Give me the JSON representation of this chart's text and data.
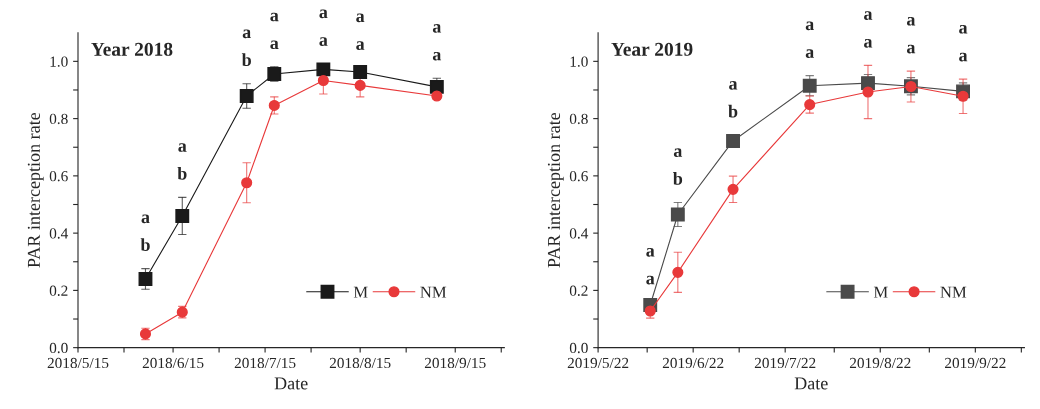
{
  "chart_data": [
    {
      "type": "line",
      "title": "Year 2018",
      "xlabel": "Date",
      "ylabel": "PAR interception rate",
      "x": [
        "2018-06-06",
        "2018-06-18",
        "2018-07-09",
        "2018-07-18",
        "2018-08-03",
        "2018-08-15",
        "2018-09-09"
      ],
      "series": [
        {
          "name": "M",
          "color": "#1a1a1a",
          "marker": "square",
          "values": [
            0.24,
            0.46,
            0.879,
            0.956,
            0.972,
            0.963,
            0.911
          ],
          "errors": [
            0.036,
            0.065,
            0.043,
            0.025,
            0.02,
            0.015,
            0.03
          ]
        },
        {
          "name": "NM",
          "color": "#e8393a",
          "marker": "circle",
          "values": [
            0.048,
            0.124,
            0.576,
            0.846,
            0.933,
            0.916,
            0.879
          ],
          "errors": [
            0.02,
            0.02,
            0.07,
            0.03,
            0.047,
            0.04,
            0.012
          ]
        }
      ],
      "xlim": [
        "2018-05-15",
        "2018-10-01"
      ],
      "xticks": [
        {
          "value": "2018-05-15",
          "label": "2018/5/15"
        },
        {
          "value": "2018-05-30",
          "label": null
        },
        {
          "value": "2018-06-15",
          "label": "2018/6/15"
        },
        {
          "value": "2018-06-30",
          "label": null
        },
        {
          "value": "2018-07-15",
          "label": "2018/7/15"
        },
        {
          "value": "2018-07-30",
          "label": null
        },
        {
          "value": "2018-08-15",
          "label": "2018/8/15"
        },
        {
          "value": "2018-08-30",
          "label": null
        },
        {
          "value": "2018-09-15",
          "label": "2018/9/15"
        },
        {
          "value": "2018-09-30",
          "label": null
        }
      ],
      "ylim": [
        0,
        1.1
      ],
      "yticks": [
        {
          "value": 0,
          "label": "0.0"
        },
        {
          "value": 0.1,
          "label": null
        },
        {
          "value": 0.2,
          "label": "0.2"
        },
        {
          "value": 0.3,
          "label": null
        },
        {
          "value": 0.4,
          "label": "0.4"
        },
        {
          "value": 0.5,
          "label": null
        },
        {
          "value": 0.6,
          "label": "0.6"
        },
        {
          "value": 0.7,
          "label": null
        },
        {
          "value": 0.8,
          "label": "0.8"
        },
        {
          "value": 0.9,
          "label": null
        },
        {
          "value": 1.0,
          "label": "1.0"
        }
      ],
      "grid": false,
      "legend": "bottom right",
      "annotations": [
        "a",
        "b",
        "a",
        "b",
        "a",
        "b",
        "a",
        "a",
        "a",
        "a",
        "a",
        "a",
        "a",
        "a"
      ]
    },
    {
      "type": "line",
      "title": "Year 2019",
      "xlabel": "Date",
      "ylabel": "PAR interception rate",
      "x": [
        "2019-06-08",
        "2019-06-17",
        "2019-07-05",
        "2019-07-30",
        "2019-08-18",
        "2019-09-01",
        "2019-09-18"
      ],
      "series": [
        {
          "name": "M",
          "color": "#4a4a4a",
          "marker": "square",
          "values": [
            0.149,
            0.465,
            0.722,
            0.915,
            0.924,
            0.913,
            0.895
          ],
          "errors": [
            0.01,
            0.042,
            0.02,
            0.035,
            0.03,
            0.03,
            0.03
          ]
        },
        {
          "name": "NM",
          "color": "#e8393a",
          "marker": "circle",
          "values": [
            0.128,
            0.263,
            0.553,
            0.849,
            0.893,
            0.912,
            0.878
          ],
          "errors": [
            0.025,
            0.07,
            0.046,
            0.03,
            0.093,
            0.054,
            0.06
          ]
        }
      ],
      "xlim": [
        "2019-05-22",
        "2019-10-08"
      ],
      "xticks": [
        {
          "value": "2019-05-22",
          "label": "2019/5/22"
        },
        {
          "value": "2019-06-07",
          "label": null
        },
        {
          "value": "2019-06-22",
          "label": "2019/6/22"
        },
        {
          "value": "2019-07-07",
          "label": null
        },
        {
          "value": "2019-07-22",
          "label": "2019/7/22"
        },
        {
          "value": "2019-08-07",
          "label": null
        },
        {
          "value": "2019-08-22",
          "label": "2019/8/22"
        },
        {
          "value": "2019-09-07",
          "label": null
        },
        {
          "value": "2019-09-22",
          "label": "2019/9/22"
        },
        {
          "value": "2019-10-07",
          "label": null
        }
      ],
      "ylim": [
        0,
        1.1
      ],
      "yticks": [
        {
          "value": 0,
          "label": "0.0"
        },
        {
          "value": 0.1,
          "label": null
        },
        {
          "value": 0.2,
          "label": "0.2"
        },
        {
          "value": 0.3,
          "label": null
        },
        {
          "value": 0.4,
          "label": "0.4"
        },
        {
          "value": 0.5,
          "label": null
        },
        {
          "value": 0.6,
          "label": "0.6"
        },
        {
          "value": 0.7,
          "label": null
        },
        {
          "value": 0.8,
          "label": "0.8"
        },
        {
          "value": 0.9,
          "label": null
        },
        {
          "value": 1.0,
          "label": "1.0"
        }
      ],
      "grid": false,
      "legend": "bottom right",
      "annotations": [
        "a",
        "a",
        "a",
        "b",
        "a",
        "b",
        "a",
        "a",
        "a",
        "a",
        "a",
        "a",
        "a",
        "a"
      ]
    }
  ]
}
